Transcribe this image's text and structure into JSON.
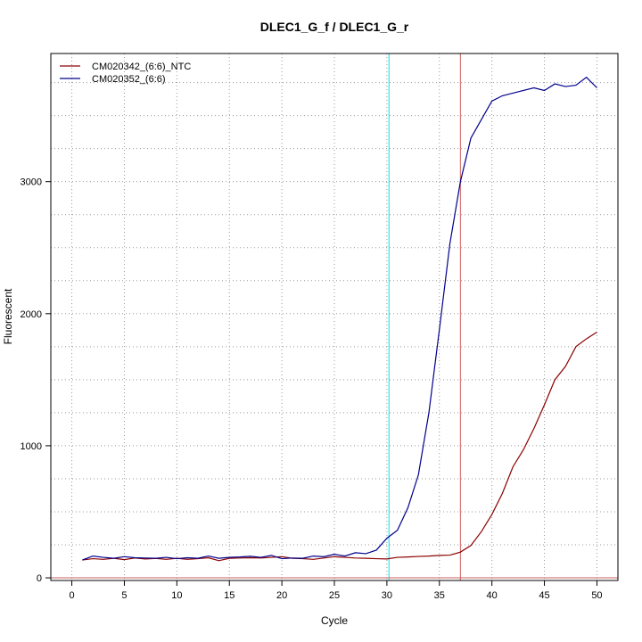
{
  "chart_data": {
    "type": "line",
    "title": "DLEC1_G_f / DLEC1_G_r",
    "xlabel": "Cycle",
    "ylabel": "Fluorescent",
    "xlim": [
      -2,
      52
    ],
    "ylim": [
      -20,
      3970
    ],
    "x_ticks": [
      0,
      5,
      10,
      15,
      20,
      25,
      30,
      35,
      40,
      45,
      50
    ],
    "y_ticks": [
      0,
      1000,
      2000,
      3000
    ],
    "grid": "dotted",
    "legend_position": "top-left",
    "vertical_lines": [
      {
        "x": 30.2,
        "color": "#00e5ee"
      },
      {
        "x": 37.0,
        "color": "#cd5c5c"
      }
    ],
    "horizontal_line": {
      "y": 0,
      "color": "#cd5c5c"
    },
    "x": [
      1,
      2,
      3,
      4,
      5,
      6,
      7,
      8,
      9,
      10,
      11,
      12,
      13,
      14,
      15,
      16,
      17,
      18,
      19,
      20,
      21,
      22,
      23,
      24,
      25,
      26,
      27,
      28,
      29,
      30,
      31,
      32,
      33,
      34,
      35,
      36,
      37,
      38,
      39,
      40,
      41,
      42,
      43,
      44,
      45,
      46,
      47,
      48,
      49,
      50
    ],
    "series": [
      {
        "name": "CM020342_(6:6)_NTC",
        "color": "#8b0000",
        "values": [
          135,
          145,
          140,
          148,
          138,
          150,
          143,
          147,
          140,
          148,
          140,
          145,
          152,
          130,
          148,
          150,
          152,
          150,
          155,
          160,
          148,
          145,
          140,
          150,
          160,
          155,
          150,
          148,
          145,
          143,
          155,
          158,
          162,
          165,
          170,
          172,
          195,
          245,
          350,
          480,
          640,
          840,
          970,
          1130,
          1310,
          1500,
          1600,
          1750,
          1810,
          1860
        ]
      },
      {
        "name": "CM020352_(6:6)",
        "color": "#00008b",
        "values": [
          135,
          165,
          155,
          148,
          160,
          152,
          150,
          148,
          155,
          145,
          152,
          148,
          165,
          148,
          155,
          158,
          163,
          155,
          170,
          145,
          150,
          148,
          165,
          160,
          178,
          165,
          190,
          183,
          210,
          300,
          360,
          530,
          780,
          1250,
          1880,
          2530,
          3000,
          3330,
          3470,
          3610,
          3650,
          3670,
          3690,
          3710,
          3690,
          3740,
          3720,
          3730,
          3790,
          3710
        ]
      }
    ]
  }
}
